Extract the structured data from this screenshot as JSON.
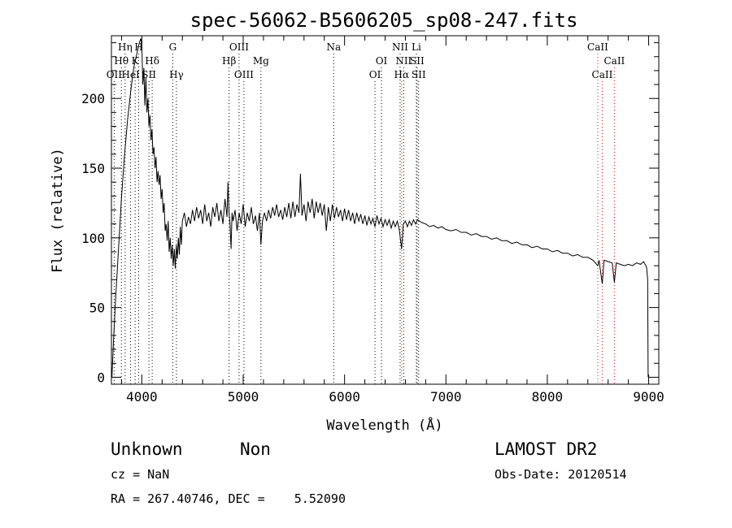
{
  "chart_data": {
    "type": "line",
    "title": "spec-56062-B5606205_sp08-247.fits",
    "xlabel": "Wavelength (Å)",
    "ylabel": "Flux (relative)",
    "xlim": [
      3700,
      9100
    ],
    "ylim": [
      -5,
      245
    ],
    "xticks": [
      4000,
      5000,
      6000,
      7000,
      8000,
      9000
    ],
    "yticks": [
      0,
      50,
      100,
      150,
      200
    ],
    "grid": false,
    "series": [
      {
        "color": "#000000",
        "points": [
          [
            3705,
            0
          ],
          [
            3720,
            25
          ],
          [
            3740,
            55
          ],
          [
            3760,
            80
          ],
          [
            3780,
            105
          ],
          [
            3800,
            130
          ],
          [
            3830,
            160
          ],
          [
            3860,
            185
          ],
          [
            3890,
            205
          ],
          [
            3920,
            222
          ],
          [
            3950,
            232
          ],
          [
            3975,
            240
          ],
          [
            3990,
            243
          ],
          [
            4000,
            238
          ],
          [
            4010,
            210
          ],
          [
            4020,
            222
          ],
          [
            4030,
            195
          ],
          [
            4040,
            215
          ],
          [
            4050,
            190
          ],
          [
            4060,
            200
          ],
          [
            4070,
            180
          ],
          [
            4080,
            188
          ],
          [
            4090,
            170
          ],
          [
            4100,
            178
          ],
          [
            4110,
            160
          ],
          [
            4120,
            165
          ],
          [
            4130,
            150
          ],
          [
            4140,
            158
          ],
          [
            4150,
            140
          ],
          [
            4160,
            148
          ],
          [
            4170,
            138
          ],
          [
            4180,
            145
          ],
          [
            4190,
            128
          ],
          [
            4200,
            135
          ],
          [
            4210,
            118
          ],
          [
            4220,
            125
          ],
          [
            4230,
            105
          ],
          [
            4240,
            110
          ],
          [
            4250,
            98
          ],
          [
            4260,
            112
          ],
          [
            4270,
            90
          ],
          [
            4280,
            100
          ],
          [
            4290,
            85
          ],
          [
            4300,
            95
          ],
          [
            4310,
            80
          ],
          [
            4320,
            92
          ],
          [
            4330,
            78
          ],
          [
            4340,
            95
          ],
          [
            4350,
            85
          ],
          [
            4360,
            100
          ],
          [
            4370,
            88
          ],
          [
            4380,
            108
          ],
          [
            4390,
            95
          ],
          [
            4400,
            112
          ],
          [
            4420,
            118
          ],
          [
            4440,
            108
          ],
          [
            4460,
            115
          ],
          [
            4480,
            110
          ],
          [
            4500,
            120
          ],
          [
            4520,
            112
          ],
          [
            4540,
            122
          ],
          [
            4560,
            114
          ],
          [
            4580,
            120
          ],
          [
            4600,
            110
          ],
          [
            4620,
            124
          ],
          [
            4640,
            112
          ],
          [
            4660,
            118
          ],
          [
            4680,
            108
          ],
          [
            4700,
            122
          ],
          [
            4720,
            115
          ],
          [
            4740,
            125
          ],
          [
            4760,
            112
          ],
          [
            4780,
            120
          ],
          [
            4800,
            110
          ],
          [
            4820,
            128
          ],
          [
            4840,
            115
          ],
          [
            4850,
            140
          ],
          [
            4860,
            118
          ],
          [
            4870,
            110
          ],
          [
            4880,
            92
          ],
          [
            4890,
            118
          ],
          [
            4900,
            112
          ],
          [
            4920,
            120
          ],
          [
            4940,
            105
          ],
          [
            4960,
            118
          ],
          [
            4980,
            110
          ],
          [
            5000,
            124
          ],
          [
            5020,
            108
          ],
          [
            5040,
            118
          ],
          [
            5060,
            112
          ],
          [
            5080,
            122
          ],
          [
            5100,
            110
          ],
          [
            5120,
            116
          ],
          [
            5140,
            105
          ],
          [
            5160,
            118
          ],
          [
            5175,
            95
          ],
          [
            5190,
            112
          ],
          [
            5210,
            118
          ],
          [
            5230,
            112
          ],
          [
            5250,
            120
          ],
          [
            5270,
            114
          ],
          [
            5290,
            122
          ],
          [
            5310,
            116
          ],
          [
            5330,
            124
          ],
          [
            5350,
            115
          ],
          [
            5370,
            120
          ],
          [
            5390,
            113
          ],
          [
            5410,
            122
          ],
          [
            5430,
            115
          ],
          [
            5450,
            125
          ],
          [
            5470,
            114
          ],
          [
            5490,
            126
          ],
          [
            5510,
            115
          ],
          [
            5530,
            124
          ],
          [
            5550,
            118
          ],
          [
            5565,
            146
          ],
          [
            5580,
            116
          ],
          [
            5600,
            124
          ],
          [
            5620,
            112
          ],
          [
            5640,
            126
          ],
          [
            5660,
            118
          ],
          [
            5680,
            128
          ],
          [
            5700,
            114
          ],
          [
            5720,
            126
          ],
          [
            5740,
            118
          ],
          [
            5760,
            125
          ],
          [
            5780,
            116
          ],
          [
            5800,
            124
          ],
          [
            5820,
            105
          ],
          [
            5840,
            122
          ],
          [
            5860,
            112
          ],
          [
            5880,
            124
          ],
          [
            5900,
            114
          ],
          [
            5920,
            122
          ],
          [
            5940,
            115
          ],
          [
            5960,
            120
          ],
          [
            5980,
            112
          ],
          [
            6000,
            121
          ],
          [
            6020,
            113
          ],
          [
            6040,
            120
          ],
          [
            6060,
            112
          ],
          [
            6080,
            118
          ],
          [
            6100,
            110
          ],
          [
            6120,
            118
          ],
          [
            6140,
            112
          ],
          [
            6160,
            117
          ],
          [
            6180,
            110
          ],
          [
            6200,
            116
          ],
          [
            6220,
            109
          ],
          [
            6240,
            115
          ],
          [
            6260,
            110
          ],
          [
            6280,
            114
          ],
          [
            6300,
            108
          ],
          [
            6320,
            116
          ],
          [
            6340,
            110
          ],
          [
            6360,
            114
          ],
          [
            6380,
            108
          ],
          [
            6400,
            113
          ],
          [
            6420,
            109
          ],
          [
            6440,
            113
          ],
          [
            6460,
            107
          ],
          [
            6480,
            112
          ],
          [
            6500,
            108
          ],
          [
            6520,
            112
          ],
          [
            6540,
            106
          ],
          [
            6563,
            92
          ],
          [
            6580,
            110
          ],
          [
            6600,
            112
          ],
          [
            6620,
            108
          ],
          [
            6640,
            112
          ],
          [
            6660,
            109
          ],
          [
            6680,
            113
          ],
          [
            6700,
            110
          ],
          [
            6720,
            113
          ],
          [
            6760,
            111
          ],
          [
            6800,
            110
          ],
          [
            6840,
            108
          ],
          [
            6880,
            109
          ],
          [
            6920,
            107
          ],
          [
            6960,
            108
          ],
          [
            7000,
            106
          ],
          [
            7050,
            105
          ],
          [
            7100,
            106
          ],
          [
            7150,
            104
          ],
          [
            7200,
            104
          ],
          [
            7250,
            102
          ],
          [
            7300,
            103
          ],
          [
            7350,
            101
          ],
          [
            7400,
            101
          ],
          [
            7450,
            99
          ],
          [
            7500,
            100
          ],
          [
            7550,
            98
          ],
          [
            7600,
            98
          ],
          [
            7650,
            96
          ],
          [
            7700,
            97
          ],
          [
            7750,
            95
          ],
          [
            7800,
            95
          ],
          [
            7850,
            93
          ],
          [
            7900,
            94
          ],
          [
            7950,
            92
          ],
          [
            8000,
            92
          ],
          [
            8050,
            90
          ],
          [
            8100,
            91
          ],
          [
            8150,
            89
          ],
          [
            8200,
            89
          ],
          [
            8250,
            87
          ],
          [
            8300,
            88
          ],
          [
            8350,
            86
          ],
          [
            8400,
            86
          ],
          [
            8450,
            84
          ],
          [
            8498,
            80
          ],
          [
            8510,
            84
          ],
          [
            8542,
            67
          ],
          [
            8560,
            84
          ],
          [
            8600,
            83
          ],
          [
            8640,
            82
          ],
          [
            8662,
            68
          ],
          [
            8680,
            82
          ],
          [
            8720,
            81
          ],
          [
            8760,
            80
          ],
          [
            8800,
            81
          ],
          [
            8840,
            80
          ],
          [
            8880,
            82
          ],
          [
            8920,
            81
          ],
          [
            8950,
            83
          ],
          [
            8980,
            79
          ],
          [
            8990,
            70
          ],
          [
            8995,
            0
          ]
        ]
      }
    ],
    "lines": [
      {
        "label": "Hη",
        "wave": 3835,
        "row": 0,
        "color": "#000000"
      },
      {
        "label": "H",
        "wave": 3969,
        "row": 0,
        "color": "#000000"
      },
      {
        "label": "Hθ",
        "wave": 3798,
        "row": 1,
        "color": "#000000"
      },
      {
        "label": "K",
        "wave": 3934,
        "row": 1,
        "color": "#000000"
      },
      {
        "label": "Hδ",
        "wave": 4102,
        "row": 1,
        "color": "#000000"
      },
      {
        "label": "OII",
        "wave": 3727,
        "row": 2,
        "color": "#000000"
      },
      {
        "label": "HeI",
        "wave": 3889,
        "row": 2,
        "color": "#000000"
      },
      {
        "label": "SII",
        "wave": 4070,
        "row": 2,
        "color": "#000000"
      },
      {
        "label": "G",
        "wave": 4305,
        "row": 0,
        "color": "#000000"
      },
      {
        "label": "Hγ",
        "wave": 4341,
        "row": 2,
        "color": "#000000"
      },
      {
        "label": "OIII",
        "wave": 4959,
        "row": 0,
        "color": "#000000"
      },
      {
        "label": "Hβ",
        "wave": 4861,
        "row": 1,
        "color": "#000000"
      },
      {
        "label": "Mg",
        "wave": 5175,
        "row": 1,
        "color": "#000000"
      },
      {
        "label": "OIII",
        "wave": 5007,
        "row": 2,
        "color": "#000000"
      },
      {
        "label": "Na",
        "wave": 5893,
        "row": 0,
        "color": "#000000"
      },
      {
        "label": "OI",
        "wave": 6364,
        "row": 1,
        "color": "#000000"
      },
      {
        "label": "OI",
        "wave": 6300,
        "row": 2,
        "color": "#000000"
      },
      {
        "label": "NII",
        "wave": 6548,
        "row": 0,
        "color": "#000000"
      },
      {
        "label": "Li",
        "wave": 6708,
        "row": 0,
        "color": "#000000"
      },
      {
        "label": "NII",
        "wave": 6583,
        "row": 1,
        "color": "#000000"
      },
      {
        "label": "SII",
        "wave": 6716,
        "row": 1,
        "color": "#000000"
      },
      {
        "label": "Hα",
        "wave": 6563,
        "row": 2,
        "color": "#ff0000"
      },
      {
        "label": "SII",
        "wave": 6731,
        "row": 2,
        "color": "#000000"
      },
      {
        "label": "CaII",
        "wave": 8498,
        "row": 0,
        "color": "#ff0000"
      },
      {
        "label": "CaII",
        "wave": 8662,
        "row": 1,
        "color": "#ff0000"
      },
      {
        "label": "CaII",
        "wave": 8542,
        "row": 2,
        "color": "#ff0000"
      }
    ]
  },
  "info": {
    "classification": "Unknown",
    "subclass": "Non",
    "survey": "LAMOST DR2",
    "redshift": "cz = NaN",
    "obs_date": "Obs-Date: 20120514",
    "coords": "RA = 267.40746, DEC =    5.52090"
  }
}
